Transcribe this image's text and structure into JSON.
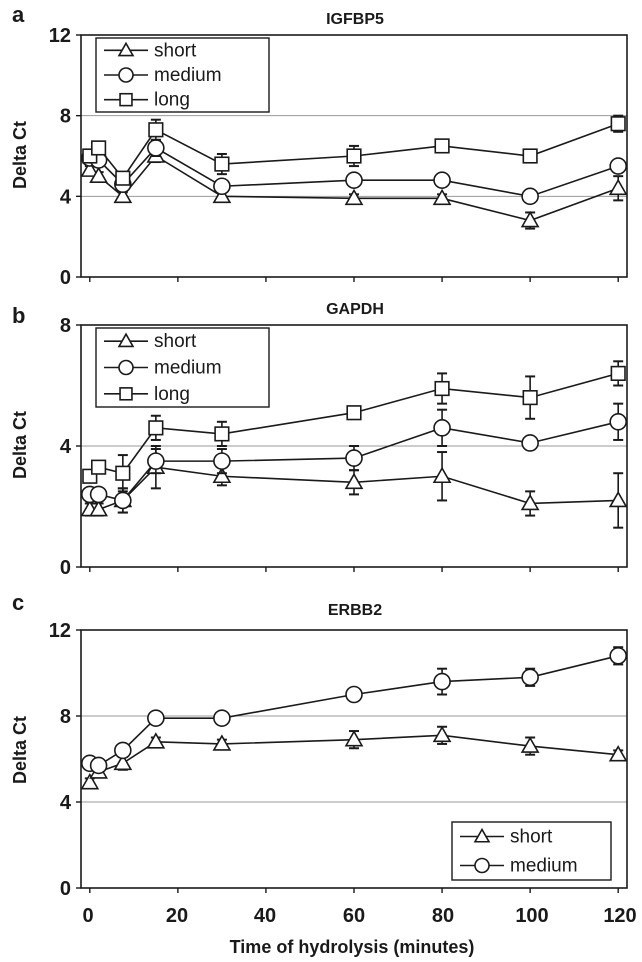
{
  "figure": {
    "xlabel": "Time of hydrolysis (minutes)",
    "x_ticks": [
      "0",
      "20",
      "40",
      "60",
      "80",
      "100",
      "120"
    ]
  },
  "chart_data": [
    {
      "type": "line",
      "panel": "a",
      "title": "IGFBP5",
      "ylabel": "Delta Ct",
      "ylim": [
        0,
        12
      ],
      "y_ticks": [
        "0",
        "4",
        "8",
        "12"
      ],
      "xlim": [
        -2,
        122
      ],
      "grid": "horizontal at 4 and 8",
      "legend_position": "top-left",
      "series": [
        {
          "name": "short",
          "marker": "triangle",
          "x": [
            0,
            2,
            7.5,
            15,
            30,
            60,
            80,
            100,
            120
          ],
          "y": [
            5.3,
            5.0,
            4.0,
            6.0,
            4.0,
            3.9,
            3.9,
            2.8,
            4.4
          ],
          "err": [
            0.2,
            0.2,
            0.2,
            0.3,
            0.2,
            0.2,
            0.2,
            0.4,
            0.6
          ]
        },
        {
          "name": "medium",
          "marker": "circle",
          "x": [
            0,
            2,
            7.5,
            15,
            30,
            60,
            80,
            100,
            120
          ],
          "y": [
            5.9,
            5.8,
            4.6,
            6.4,
            4.5,
            4.8,
            4.8,
            4.0,
            5.5
          ],
          "err": [
            0.2,
            0.2,
            0.2,
            0.4,
            0.2,
            0.2,
            0.2,
            0.3,
            0.3
          ]
        },
        {
          "name": "long",
          "marker": "square",
          "x": [
            0,
            2,
            7.5,
            15,
            30,
            60,
            80,
            100,
            120
          ],
          "y": [
            6.0,
            6.4,
            4.9,
            7.3,
            5.6,
            6.0,
            6.5,
            6.0,
            7.6
          ],
          "err": [
            0.2,
            0.2,
            0.2,
            0.5,
            0.5,
            0.5,
            0.2,
            0.2,
            0.4
          ]
        }
      ]
    },
    {
      "type": "line",
      "panel": "b",
      "title": "GAPDH",
      "ylabel": "Delta Ct",
      "ylim": [
        0,
        8
      ],
      "y_ticks": [
        "0",
        "4",
        "8"
      ],
      "xlim": [
        -2,
        122
      ],
      "grid": "horizontal at 4",
      "legend_position": "top-left",
      "series": [
        {
          "name": "short",
          "marker": "triangle",
          "x": [
            0,
            2,
            7.5,
            15,
            30,
            60,
            80,
            100,
            120
          ],
          "y": [
            1.9,
            1.9,
            2.2,
            3.3,
            3.0,
            2.8,
            3.0,
            2.1,
            2.2
          ],
          "err": [
            0.2,
            0.2,
            0.4,
            0.7,
            0.3,
            0.4,
            0.8,
            0.4,
            0.9
          ]
        },
        {
          "name": "medium",
          "marker": "circle",
          "x": [
            0,
            2,
            7.5,
            15,
            30,
            60,
            80,
            100,
            120
          ],
          "y": [
            2.4,
            2.4,
            2.2,
            3.5,
            3.5,
            3.6,
            4.6,
            4.1,
            4.8
          ],
          "err": [
            0.2,
            0.2,
            0.4,
            0.4,
            0.4,
            0.4,
            0.6,
            0.2,
            0.6
          ]
        },
        {
          "name": "long",
          "marker": "square",
          "x": [
            0,
            2,
            7.5,
            15,
            30,
            60,
            80,
            100,
            120
          ],
          "y": [
            3.0,
            3.3,
            3.1,
            4.6,
            4.4,
            5.1,
            5.9,
            5.6,
            6.4
          ],
          "err": [
            0.2,
            0.2,
            0.6,
            0.4,
            0.4,
            0.1,
            0.5,
            0.7,
            0.4
          ]
        }
      ]
    },
    {
      "type": "line",
      "panel": "c",
      "title": "ERBB2",
      "ylabel": "Delta Ct",
      "ylim": [
        0,
        12
      ],
      "y_ticks": [
        "0",
        "4",
        "8",
        "12"
      ],
      "xlim": [
        -2,
        122
      ],
      "grid": "horizontal at 4 and 8",
      "legend_position": "bottom-right",
      "series": [
        {
          "name": "short",
          "marker": "triangle",
          "x": [
            0,
            2,
            7.5,
            15,
            30,
            60,
            80,
            100,
            120
          ],
          "y": [
            4.9,
            5.4,
            5.8,
            6.8,
            6.7,
            6.9,
            7.1,
            6.6,
            6.2
          ],
          "err": [
            0.2,
            0.2,
            0.3,
            0.2,
            0.2,
            0.4,
            0.4,
            0.4,
            0.2
          ]
        },
        {
          "name": "medium",
          "marker": "circle",
          "x": [
            0,
            2,
            7.5,
            15,
            30,
            60,
            80,
            100,
            120
          ],
          "y": [
            5.8,
            5.7,
            6.4,
            7.9,
            7.9,
            9.0,
            9.6,
            9.8,
            10.8
          ],
          "err": [
            0.2,
            0.2,
            0.2,
            0.2,
            0.2,
            0.2,
            0.6,
            0.4,
            0.4
          ]
        }
      ]
    }
  ]
}
